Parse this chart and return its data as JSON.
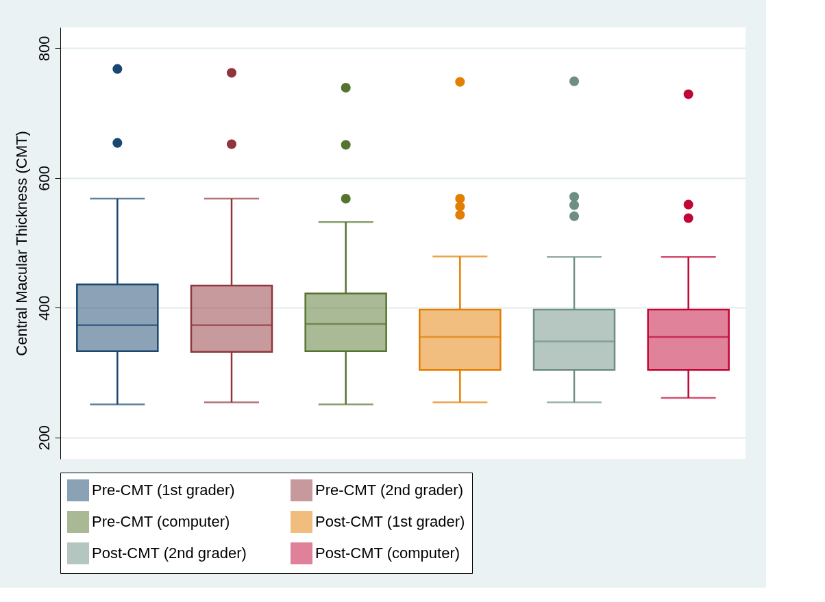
{
  "chart_data": {
    "type": "box",
    "ylabel": "Central Macular Thickness (CMT)",
    "categories": [
      null,
      null,
      null,
      null,
      null,
      null
    ],
    "ylim": [
      167,
      832
    ],
    "yticks": [
      200,
      400,
      600,
      800
    ],
    "grid": "y",
    "legend": "bottom",
    "tick_labels": "y",
    "series": [
      {
        "name": "Pre-CMT (1st grader)",
        "color": "#1a476f",
        "boxes": [
          {
            "low": 251,
            "q1": 333,
            "median": 373,
            "q3": 436,
            "high": 568,
            "outliers": [
              654,
              768
            ]
          },
          null,
          null,
          null,
          null,
          null
        ]
      },
      {
        "name": "Pre-CMT (2nd grader)",
        "color": "#90353b",
        "boxes": [
          null,
          {
            "low": 254,
            "q1": 332,
            "median": 373,
            "q3": 434,
            "high": 568,
            "outliers": [
              652,
              762
            ]
          },
          null,
          null,
          null,
          null
        ]
      },
      {
        "name": "Pre-CMT (computer)",
        "color": "#55752f",
        "boxes": [
          null,
          null,
          {
            "low": 251,
            "q1": 333,
            "median": 375,
            "q3": 422,
            "high": 532,
            "outliers": [
              568,
              651,
              739
            ]
          },
          null,
          null,
          null
        ]
      },
      {
        "name": "Post-CMT (1st grader)",
        "color": "#e37e00",
        "boxes": [
          null,
          null,
          null,
          {
            "low": 254,
            "q1": 304,
            "median": 355,
            "q3": 397,
            "high": 479,
            "outliers": [
              543,
              556,
              568,
              748
            ]
          },
          null,
          null
        ]
      },
      {
        "name": "Post-CMT (2nd grader)",
        "color": "#6e8e84",
        "boxes": [
          null,
          null,
          null,
          null,
          {
            "low": 254,
            "q1": 304,
            "median": 348,
            "q3": 397,
            "high": 478,
            "outliers": [
              541,
              558,
              571,
              749
            ]
          },
          null
        ]
      },
      {
        "name": "Post-CMT (computer)",
        "color": "#c10534",
        "boxes": [
          null,
          null,
          null,
          null,
          null,
          {
            "low": 261,
            "q1": 304,
            "median": 355,
            "q3": 397,
            "high": 478,
            "outliers": [
              538,
              559,
              729
            ]
          }
        ]
      }
    ]
  }
}
